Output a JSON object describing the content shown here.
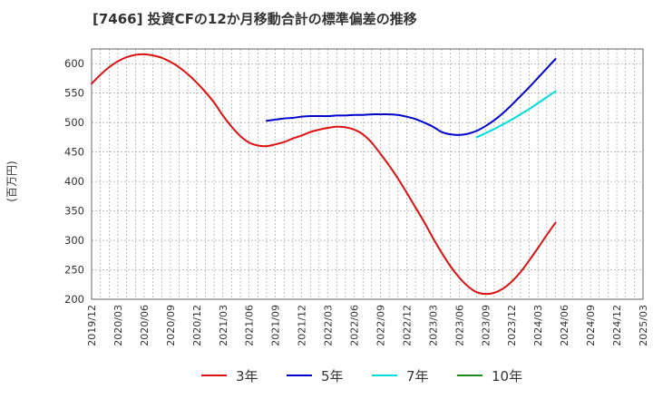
{
  "title": "[7466]  投資CFの12か月移動合計の標準偏差の推移",
  "chart_data": {
    "type": "line",
    "title": "[7466]  投資CFの12か月移動合計の標準偏差の推移",
    "ylabel": "(百万円)",
    "xlabel": "",
    "ylim": [
      200,
      625
    ],
    "yticks": [
      200,
      250,
      300,
      350,
      400,
      450,
      500,
      550,
      600
    ],
    "x_categories": [
      "2019/12",
      "2020/03",
      "2020/06",
      "2020/09",
      "2020/12",
      "2021/03",
      "2021/06",
      "2021/09",
      "2021/12",
      "2022/03",
      "2022/06",
      "2022/09",
      "2022/12",
      "2023/03",
      "2023/06",
      "2023/09",
      "2023/12",
      "2024/03",
      "2024/06",
      "2024/09",
      "2024/12",
      "2025/03"
    ],
    "grid": true,
    "legend_position": "bottom",
    "series": [
      {
        "name": "3年",
        "color": "#dd1111",
        "points": [
          [
            "2019/12",
            566
          ],
          [
            "2020/01",
            581
          ],
          [
            "2020/02",
            594
          ],
          [
            "2020/03",
            604
          ],
          [
            "2020/04",
            611
          ],
          [
            "2020/05",
            615
          ],
          [
            "2020/06",
            616
          ],
          [
            "2020/07",
            614
          ],
          [
            "2020/08",
            610
          ],
          [
            "2020/09",
            603
          ],
          [
            "2020/10",
            594
          ],
          [
            "2020/11",
            582
          ],
          [
            "2020/12",
            568
          ],
          [
            "2021/01",
            552
          ],
          [
            "2021/02",
            534
          ],
          [
            "2021/03",
            512
          ],
          [
            "2021/04",
            493
          ],
          [
            "2021/05",
            477
          ],
          [
            "2021/06",
            466
          ],
          [
            "2021/07",
            461
          ],
          [
            "2021/08",
            460
          ],
          [
            "2021/09",
            463
          ],
          [
            "2021/10",
            467
          ],
          [
            "2021/11",
            473
          ],
          [
            "2021/12",
            478
          ],
          [
            "2022/01",
            484
          ],
          [
            "2022/02",
            488
          ],
          [
            "2022/03",
            491
          ],
          [
            "2022/04",
            493
          ],
          [
            "2022/05",
            492
          ],
          [
            "2022/06",
            488
          ],
          [
            "2022/07",
            480
          ],
          [
            "2022/08",
            466
          ],
          [
            "2022/09",
            447
          ],
          [
            "2022/10",
            427
          ],
          [
            "2022/11",
            405
          ],
          [
            "2022/12",
            381
          ],
          [
            "2023/01",
            356
          ],
          [
            "2023/02",
            331
          ],
          [
            "2023/03",
            304
          ],
          [
            "2023/04",
            279
          ],
          [
            "2023/05",
            256
          ],
          [
            "2023/06",
            237
          ],
          [
            "2023/07",
            222
          ],
          [
            "2023/08",
            212
          ],
          [
            "2023/09",
            209
          ],
          [
            "2023/10",
            211
          ],
          [
            "2023/11",
            218
          ],
          [
            "2023/12",
            230
          ],
          [
            "2024/01",
            246
          ],
          [
            "2024/02",
            266
          ],
          [
            "2024/03",
            287
          ],
          [
            "2024/04",
            309
          ],
          [
            "2024/05",
            330
          ]
        ]
      },
      {
        "name": "5年",
        "color": "#0000cc",
        "points": [
          [
            "2021/08",
            503
          ],
          [
            "2021/09",
            505
          ],
          [
            "2021/10",
            507
          ],
          [
            "2021/11",
            508
          ],
          [
            "2021/12",
            510
          ],
          [
            "2022/01",
            511
          ],
          [
            "2022/02",
            511
          ],
          [
            "2022/03",
            511
          ],
          [
            "2022/04",
            512
          ],
          [
            "2022/05",
            512
          ],
          [
            "2022/06",
            513
          ],
          [
            "2022/07",
            513
          ],
          [
            "2022/08",
            514
          ],
          [
            "2022/09",
            514
          ],
          [
            "2022/10",
            514
          ],
          [
            "2022/11",
            513
          ],
          [
            "2022/12",
            510
          ],
          [
            "2023/01",
            506
          ],
          [
            "2023/02",
            500
          ],
          [
            "2023/03",
            493
          ],
          [
            "2023/04",
            484
          ],
          [
            "2023/05",
            480
          ],
          [
            "2023/06",
            479
          ],
          [
            "2023/07",
            481
          ],
          [
            "2023/08",
            486
          ],
          [
            "2023/09",
            494
          ],
          [
            "2023/10",
            504
          ],
          [
            "2023/11",
            516
          ],
          [
            "2023/12",
            530
          ],
          [
            "2024/01",
            545
          ],
          [
            "2024/02",
            560
          ],
          [
            "2024/03",
            576
          ],
          [
            "2024/04",
            592
          ],
          [
            "2024/05",
            608
          ]
        ]
      },
      {
        "name": "7年",
        "color": "#00dddd",
        "points": [
          [
            "2023/08",
            475
          ],
          [
            "2023/09",
            482
          ],
          [
            "2023/10",
            489
          ],
          [
            "2023/11",
            497
          ],
          [
            "2023/12",
            505
          ],
          [
            "2024/01",
            514
          ],
          [
            "2024/02",
            523
          ],
          [
            "2024/03",
            533
          ],
          [
            "2024/04",
            543
          ],
          [
            "2024/05",
            553
          ]
        ]
      },
      {
        "name": "10年",
        "color": "#228822",
        "points": []
      }
    ]
  }
}
